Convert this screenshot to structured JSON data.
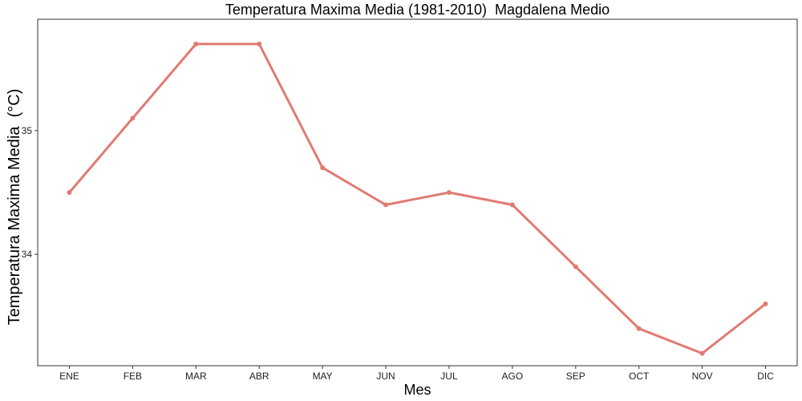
{
  "chart_data": {
    "type": "line",
    "title": "Temperatura Maxima Media (1981-2010)  Magdalena Medio",
    "xlabel": "Mes",
    "ylabel": "Temperatura Maxima Media  (°C)",
    "categories": [
      "ENE",
      "FEB",
      "MAR",
      "ABR",
      "MAY",
      "JUN",
      "JUL",
      "AGO",
      "SEP",
      "OCT",
      "NOV",
      "DIC"
    ],
    "series": [
      {
        "values": [
          34.5,
          35.1,
          35.7,
          35.7,
          34.7,
          34.4,
          34.5,
          34.4,
          33.9,
          33.4,
          33.2,
          33.6
        ]
      }
    ],
    "ylim": [
      33.1,
      35.9
    ],
    "yticks": [
      34,
      35
    ],
    "line_color": "#e07b72",
    "grid": false,
    "legend": "none"
  }
}
